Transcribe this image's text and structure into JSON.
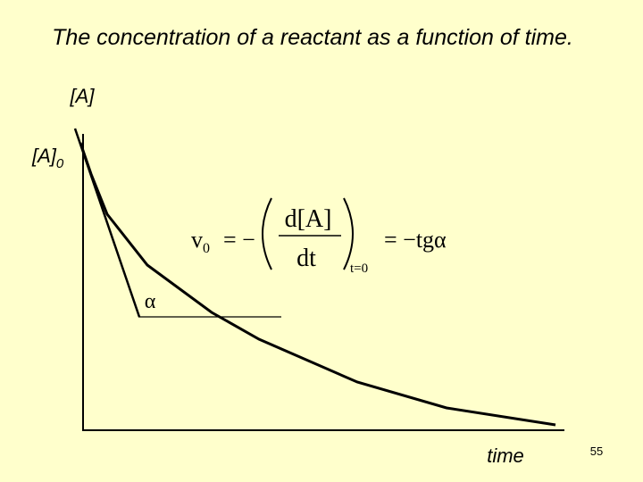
{
  "title": "The concentration of a reactant as a function of time.",
  "y_axis_label": "[A]",
  "initial_label": {
    "text": "[A]",
    "subscript": "0"
  },
  "x_axis_label": "time",
  "angle_label": "α",
  "formula": {
    "lhs": "v",
    "lhs_subscript": "0",
    "equals_minus": "= −",
    "numerator": "d[A]",
    "denominator": "dt",
    "condition": "t=0",
    "rhs": "= −tgα"
  },
  "page_number": "55"
}
